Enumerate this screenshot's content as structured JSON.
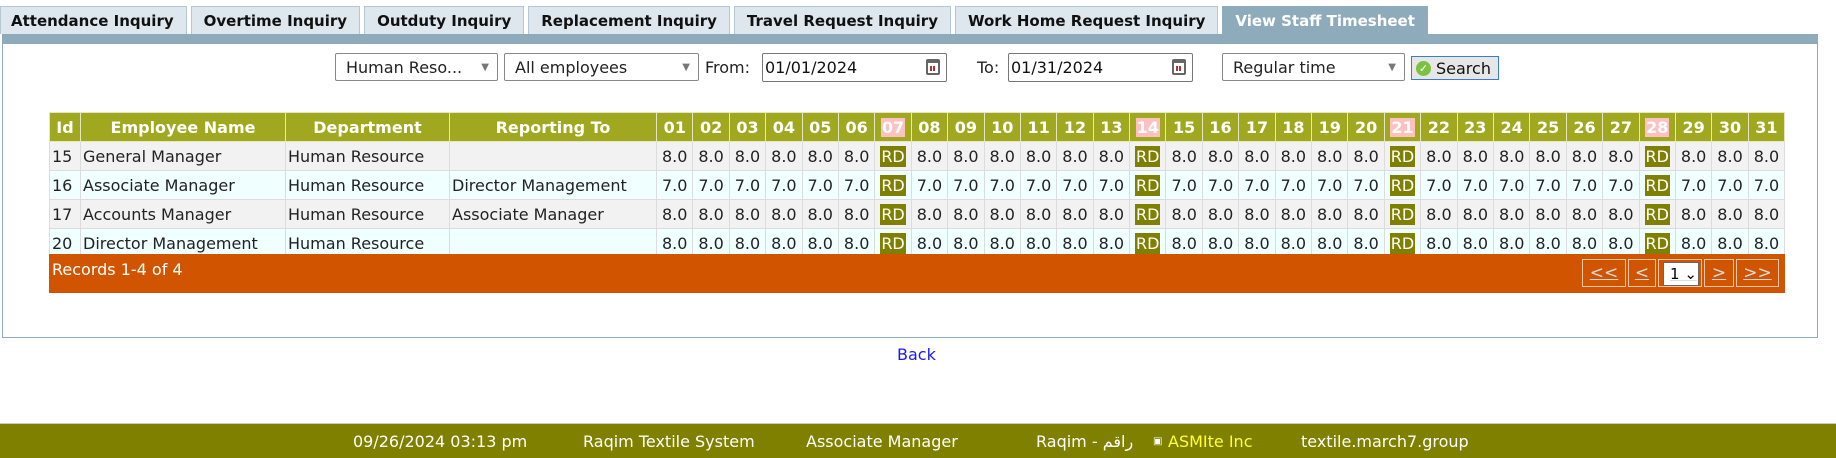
{
  "tabs": [
    {
      "label": "Attendance Inquiry",
      "active": false
    },
    {
      "label": "Overtime Inquiry",
      "active": false
    },
    {
      "label": "Outduty Inquiry",
      "active": false
    },
    {
      "label": "Replacement Inquiry",
      "active": false
    },
    {
      "label": "Travel Request Inquiry",
      "active": false
    },
    {
      "label": "Work Home Request Inquiry",
      "active": false
    },
    {
      "label": "View Staff Timesheet",
      "active": true
    }
  ],
  "filters": {
    "department": "Human Reso...",
    "employees": "All employees",
    "from_label": "From:",
    "from_value": "01/01/2024",
    "to_label": "To:",
    "to_value": "01/31/2024",
    "time_type": "Regular time",
    "search_label": "Search"
  },
  "table": {
    "headers": {
      "id": "Id",
      "name": "Employee Name",
      "department": "Department",
      "reporting": "Reporting To"
    },
    "days": [
      "01",
      "02",
      "03",
      "04",
      "05",
      "06",
      "07",
      "08",
      "09",
      "10",
      "11",
      "12",
      "13",
      "14",
      "15",
      "16",
      "17",
      "18",
      "19",
      "20",
      "21",
      "22",
      "23",
      "24",
      "25",
      "26",
      "27",
      "28",
      "29",
      "30",
      "31"
    ],
    "weekend_days": [
      "07",
      "14",
      "21",
      "28"
    ],
    "rows": [
      {
        "id": "15",
        "name": "General Manager",
        "department": "Human Resource",
        "reporting": "",
        "values": [
          "8.0",
          "8.0",
          "8.0",
          "8.0",
          "8.0",
          "8.0",
          "RD",
          "8.0",
          "8.0",
          "8.0",
          "8.0",
          "8.0",
          "8.0",
          "RD",
          "8.0",
          "8.0",
          "8.0",
          "8.0",
          "8.0",
          "8.0",
          "RD",
          "8.0",
          "8.0",
          "8.0",
          "8.0",
          "8.0",
          "8.0",
          "RD",
          "8.0",
          "8.0",
          "8.0"
        ]
      },
      {
        "id": "16",
        "name": "Associate Manager",
        "department": "Human Resource",
        "reporting": "Director Management",
        "values": [
          "7.0",
          "7.0",
          "7.0",
          "7.0",
          "7.0",
          "7.0",
          "RD",
          "7.0",
          "7.0",
          "7.0",
          "7.0",
          "7.0",
          "7.0",
          "RD",
          "7.0",
          "7.0",
          "7.0",
          "7.0",
          "7.0",
          "7.0",
          "RD",
          "7.0",
          "7.0",
          "7.0",
          "7.0",
          "7.0",
          "7.0",
          "RD",
          "7.0",
          "7.0",
          "7.0"
        ]
      },
      {
        "id": "17",
        "name": "Accounts Manager",
        "department": "Human Resource",
        "reporting": "Associate Manager",
        "values": [
          "8.0",
          "8.0",
          "8.0",
          "8.0",
          "8.0",
          "8.0",
          "RD",
          "8.0",
          "8.0",
          "8.0",
          "8.0",
          "8.0",
          "8.0",
          "RD",
          "8.0",
          "8.0",
          "8.0",
          "8.0",
          "8.0",
          "8.0",
          "RD",
          "8.0",
          "8.0",
          "8.0",
          "8.0",
          "8.0",
          "8.0",
          "RD",
          "8.0",
          "8.0",
          "8.0"
        ]
      },
      {
        "id": "20",
        "name": "Director Management",
        "department": "Human Resource",
        "reporting": "",
        "values": [
          "8.0",
          "8.0",
          "8.0",
          "8.0",
          "8.0",
          "8.0",
          "RD",
          "8.0",
          "8.0",
          "8.0",
          "8.0",
          "8.0",
          "8.0",
          "RD",
          "8.0",
          "8.0",
          "8.0",
          "8.0",
          "8.0",
          "8.0",
          "RD",
          "8.0",
          "8.0",
          "8.0",
          "8.0",
          "8.0",
          "8.0",
          "RD",
          "8.0",
          "8.0",
          "8.0"
        ]
      }
    ]
  },
  "pager": {
    "records": "Records 1-4 of 4",
    "first": "<<",
    "prev": "<",
    "page": "1",
    "next": ">",
    "last": ">>"
  },
  "back_label": "Back",
  "footer": {
    "datetime": "09/26/2024 03:13 pm",
    "system": "Raqim Textile System",
    "user": "Associate Manager",
    "brand": "Raqim - راقم",
    "company": "ASMIte Inc",
    "domain": "textile.march7.group"
  },
  "colors": {
    "header": "#A0A820",
    "rest_day": "#808000",
    "weekend_header": "#FFC0C0",
    "pager": "#D15400",
    "footer": "#808000",
    "tab_active": "#8EABBC"
  }
}
